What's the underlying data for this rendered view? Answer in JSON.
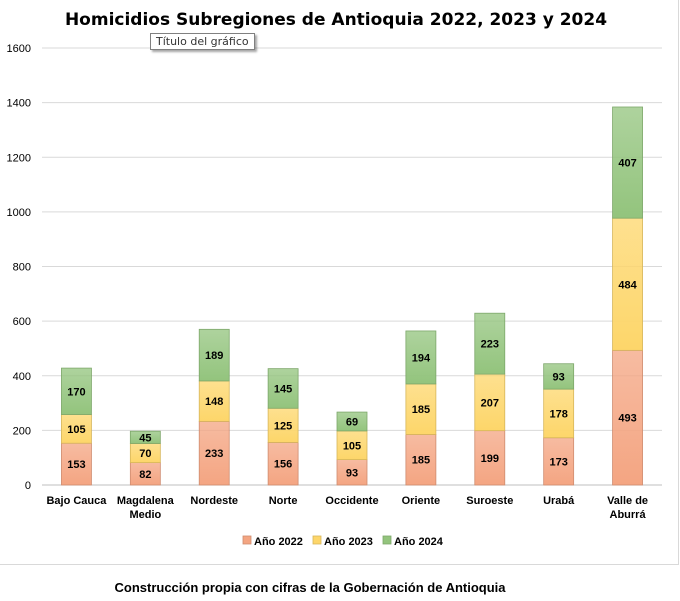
{
  "chart_data": {
    "type": "bar",
    "stacked": true,
    "title": "Homicidios Subregiones de Antioquia 2022, 2023 y 2024",
    "categories": [
      [
        "Bajo Cauca"
      ],
      [
        "Magdalena",
        "Medio"
      ],
      [
        "Nordeste"
      ],
      [
        "Norte"
      ],
      [
        "Occidente"
      ],
      [
        "Oriente"
      ],
      [
        "Suroeste"
      ],
      [
        "Urabá"
      ],
      [
        "Valle de",
        "Aburrá"
      ]
    ],
    "series": [
      {
        "name": "Año 2022",
        "color": "#f4a582",
        "values": [
          153,
          82,
          233,
          156,
          93,
          185,
          199,
          173,
          493
        ]
      },
      {
        "name": "Año 2023",
        "color": "#fdd66a",
        "values": [
          105,
          70,
          148,
          125,
          105,
          185,
          207,
          178,
          484
        ]
      },
      {
        "name": "Año 2024",
        "color": "#93c47d",
        "values": [
          170,
          45,
          189,
          145,
          69,
          194,
          223,
          93,
          407
        ]
      }
    ],
    "ylim": [
      0,
      1600
    ],
    "yticks": [
      0,
      200,
      400,
      600,
      800,
      1000,
      1200,
      1400,
      1600
    ],
    "grid": true,
    "legend": "bottom",
    "xlabel": "",
    "ylabel": ""
  },
  "tooltip_text": "Título del gráfico",
  "footer_text": "Construcción propia con cifras de la Gobernación de Antioquia"
}
